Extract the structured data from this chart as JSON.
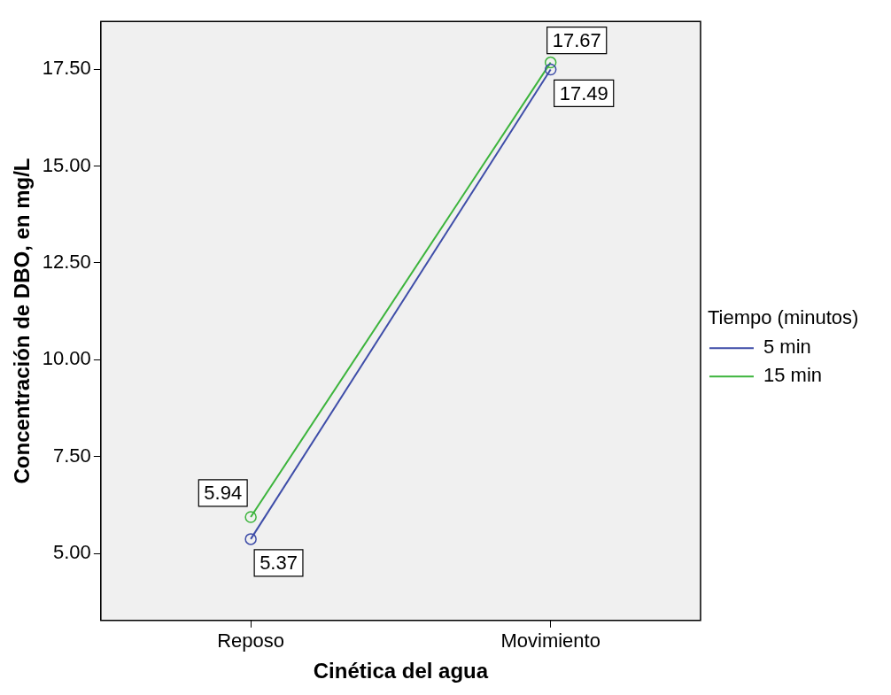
{
  "chart_data": {
    "type": "line",
    "xlabel": "Cinética del agua",
    "ylabel": "Concentración de DBO, en mg/L",
    "legend_title": "Tiempo (minutos)",
    "categories": [
      "Reposo",
      "Movimiento"
    ],
    "series": [
      {
        "name": "5 min",
        "color": "#3e4da8",
        "values": [
          5.37,
          17.49
        ]
      },
      {
        "name": "15 min",
        "color": "#3cb43c",
        "values": [
          5.94,
          17.67
        ]
      }
    ],
    "ylim": [
      3.27,
      18.73
    ],
    "yticks": [
      {
        "value": 5,
        "label": "5.00"
      },
      {
        "value": 7.5,
        "label": "7.50"
      },
      {
        "value": 10,
        "label": "10.00"
      },
      {
        "value": 12.5,
        "label": "12.50"
      },
      {
        "value": 15,
        "label": "15.00"
      },
      {
        "value": 17.5,
        "label": "17.50"
      }
    ],
    "grid": false,
    "legend": "right",
    "marker": "circle",
    "line_style": "solid",
    "data_labels": true
  }
}
